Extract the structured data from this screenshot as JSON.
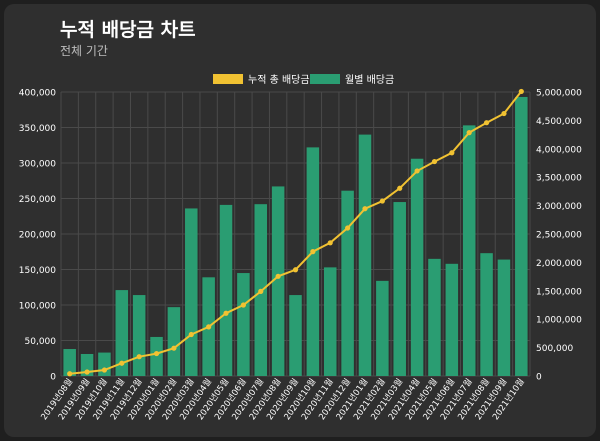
{
  "header": {
    "title": "누적 배당금 차트",
    "subtitle": "전체 기간"
  },
  "colors": {
    "background": "#2f2f2f",
    "bar": "#2a9d72",
    "line": "#f1c232",
    "grid": "#4a4a4a",
    "text": "#ffffff"
  },
  "chart_data": {
    "type": "bar",
    "categories": [
      "2019년08월",
      "2019년09월",
      "2019년10월",
      "2019년11월",
      "2019년12월",
      "2020년01월",
      "2020년02월",
      "2020년03월",
      "2020년04월",
      "2020년05월",
      "2020년06월",
      "2020년07월",
      "2020년08월",
      "2020년09월",
      "2020년10월",
      "2020년11월",
      "2020년12월",
      "2021년01월",
      "2021년02월",
      "2021년03월",
      "2021년04월",
      "2021년05월",
      "2021년06월",
      "2021년07월",
      "2021년08월",
      "2021년09월",
      "2021년10월"
    ],
    "series": [
      {
        "name": "누적 총 배당금",
        "type": "line",
        "axis": "right",
        "values": [
          40000,
          70000,
          105000,
          225000,
          340000,
          395000,
          490000,
          730000,
          865000,
          1105000,
          1250000,
          1490000,
          1755000,
          1870000,
          2190000,
          2345000,
          2605000,
          2945000,
          3080000,
          3305000,
          3610000,
          3775000,
          3930000,
          4285000,
          4460000,
          4620000,
          5010000
        ]
      },
      {
        "name": "월별 배당금",
        "type": "bar",
        "axis": "left",
        "values": [
          38000,
          31000,
          33000,
          121000,
          114000,
          55000,
          97000,
          236000,
          139000,
          241000,
          145000,
          242000,
          267000,
          114000,
          322000,
          153000,
          261000,
          340000,
          134000,
          245000,
          306000,
          165000,
          158000,
          353000,
          173000,
          164000,
          393000
        ]
      }
    ],
    "y_left": {
      "lim": [
        0,
        400000
      ],
      "ticks": [
        "0",
        "50,000",
        "100,000",
        "150,000",
        "200,000",
        "250,000",
        "300,000",
        "350,000",
        "400,000"
      ]
    },
    "y_right": {
      "lim": [
        0,
        5000000
      ],
      "ticks": [
        "0",
        "500,000",
        "1,000,000",
        "1,500,000",
        "2,000,000",
        "2,500,000",
        "3,000,000",
        "3,500,000",
        "4,000,000",
        "4,500,000",
        "5,000,000"
      ]
    },
    "grid": true,
    "legend": "top-center"
  }
}
